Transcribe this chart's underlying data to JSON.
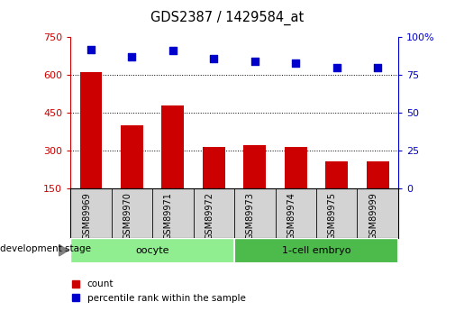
{
  "title": "GDS2387 / 1429584_at",
  "samples": [
    "GSM89969",
    "GSM89970",
    "GSM89971",
    "GSM89972",
    "GSM89973",
    "GSM89974",
    "GSM89975",
    "GSM89999"
  ],
  "counts": [
    612,
    400,
    478,
    315,
    322,
    315,
    255,
    258
  ],
  "percentiles": [
    92,
    87,
    91,
    86,
    84,
    83,
    80,
    80
  ],
  "groups": [
    {
      "label": "oocyte",
      "start": 0,
      "end": 4,
      "color": "#90EE90"
    },
    {
      "label": "1-cell embryo",
      "start": 4,
      "end": 8,
      "color": "#4CBB4C"
    }
  ],
  "ylim_left": [
    150,
    750
  ],
  "ylim_right": [
    0,
    100
  ],
  "yticks_left": [
    150,
    300,
    450,
    600,
    750
  ],
  "yticks_right": [
    0,
    25,
    50,
    75,
    100
  ],
  "bar_color": "#CC0000",
  "dot_color": "#0000CC",
  "left_tick_color": "#CC0000",
  "right_tick_color": "#0000CC",
  "box_bg": "#D3D3D3",
  "fig_width": 5.05,
  "fig_height": 3.45,
  "dpi": 100
}
